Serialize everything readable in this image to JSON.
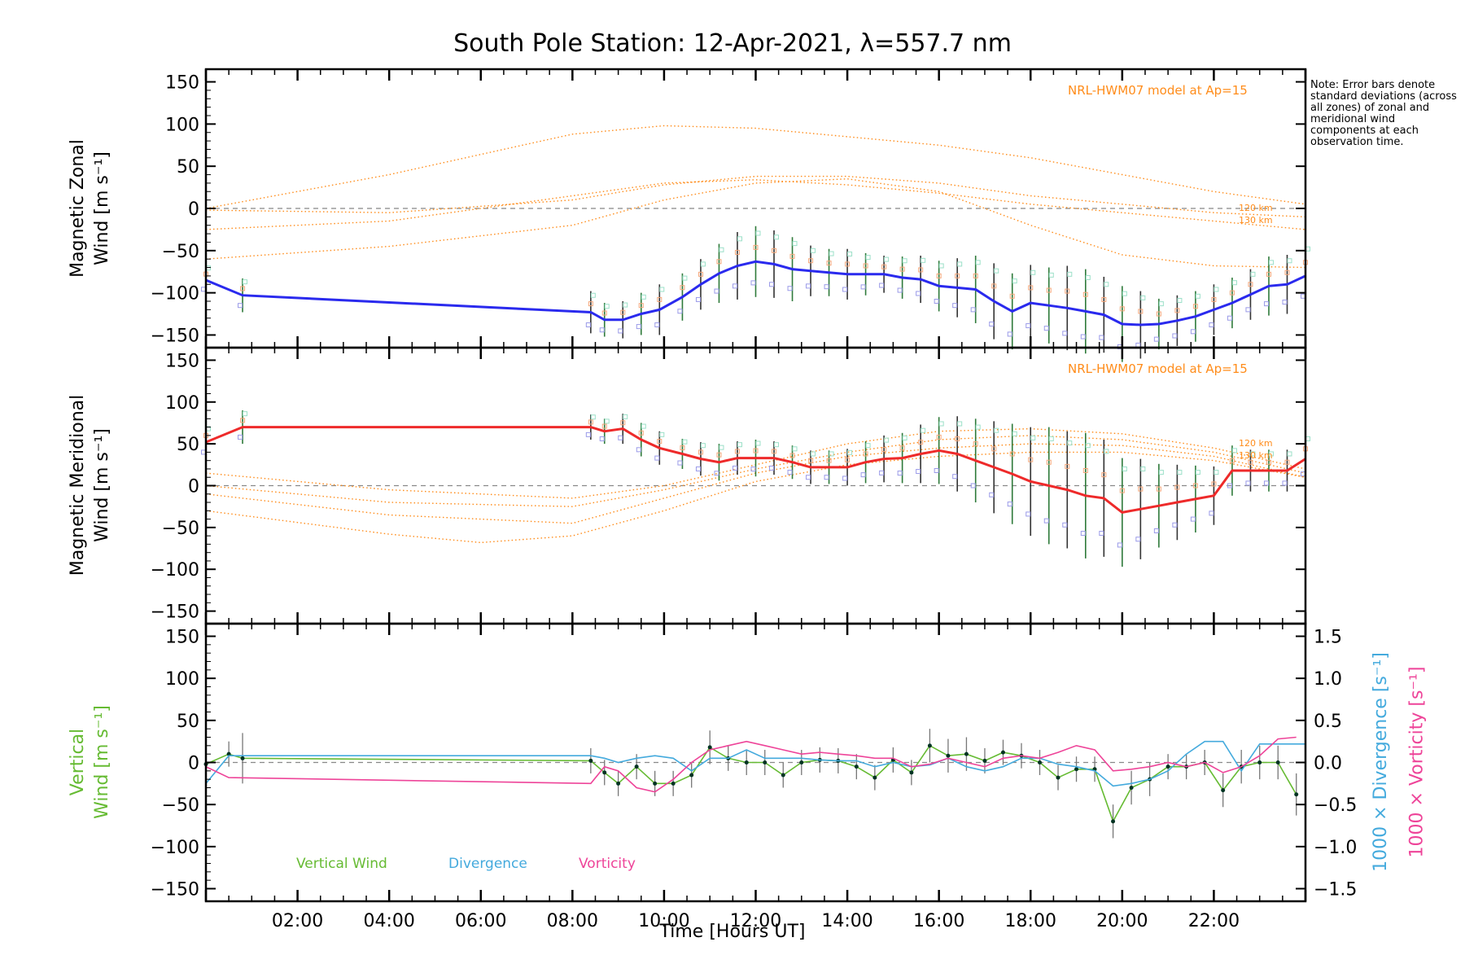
{
  "title": "South Pole Station: 12-Apr-2021, λ=557.7 nm",
  "note": "Note: Error bars denote standard deviations (across all zones) of zonal and meridional wind components at each observation time.",
  "x_axis_label": "Time [Hours UT]",
  "colors": {
    "zonal": "#2a2aee",
    "meridional": "#ee2a2a",
    "vertical": "#66bb33",
    "divergence": "#44aadd",
    "vorticity": "#ee4499",
    "model": "#ff8c1a",
    "zero_line": "#888888"
  },
  "chart_data": [
    {
      "type": "line",
      "name": "zonal",
      "title": "",
      "ylabel_line1": "Magnetic Zonal",
      "ylabel_line2": "Wind [m s⁻¹]",
      "model_note": "NRL-HWM07 model at Ap=15",
      "model_alt_labels": [
        "120 km",
        "130 km"
      ],
      "xlim": [
        0,
        24
      ],
      "ylim": [
        -165,
        165
      ],
      "yticks": [
        150,
        100,
        50,
        0,
        -50,
        -100,
        -150
      ],
      "x": [
        0.0,
        0.8,
        8.4,
        8.7,
        9.1,
        9.5,
        9.9,
        10.4,
        10.8,
        11.2,
        11.6,
        12.0,
        12.4,
        12.8,
        13.2,
        13.6,
        14.0,
        14.4,
        14.8,
        15.2,
        15.6,
        16.0,
        16.4,
        16.8,
        17.2,
        17.6,
        18.0,
        18.4,
        18.8,
        19.2,
        19.6,
        20.0,
        20.4,
        20.8,
        21.2,
        21.6,
        22.0,
        22.4,
        22.8,
        23.2,
        23.6,
        24.0
      ],
      "values": [
        -85,
        -103,
        -123,
        -132,
        -132,
        -125,
        -120,
        -105,
        -90,
        -77,
        -68,
        -63,
        -66,
        -72,
        -74,
        -76,
        -78,
        -78,
        -78,
        -82,
        -84,
        -92,
        -94,
        -96,
        -110,
        -122,
        -112,
        -115,
        -118,
        -122,
        -126,
        -137,
        -138,
        -137,
        -133,
        -128,
        -120,
        -112,
        -102,
        -92,
        -90,
        -80
      ],
      "error_bars": [
        18,
        20,
        25,
        20,
        22,
        25,
        30,
        28,
        30,
        35,
        40,
        42,
        40,
        38,
        30,
        28,
        30,
        25,
        22,
        25,
        28,
        30,
        35,
        40,
        45,
        45,
        45,
        45,
        50,
        50,
        45,
        45,
        40,
        30,
        30,
        30,
        30,
        30,
        30,
        35,
        35,
        40
      ],
      "model_curves": [
        {
          "x": [
            0,
            4,
            8,
            10,
            12,
            14,
            16,
            18,
            20,
            22,
            24
          ],
          "values": [
            0,
            40,
            88,
            98,
            95,
            85,
            75,
            60,
            40,
            20,
            5
          ]
        },
        {
          "x": [
            0,
            4,
            8,
            10,
            12,
            14,
            16,
            18,
            20,
            22,
            24
          ],
          "values": [
            -2,
            -5,
            10,
            28,
            38,
            38,
            30,
            15,
            5,
            -5,
            -10
          ]
        },
        {
          "x": [
            0,
            4,
            8,
            10,
            12,
            14,
            16,
            18,
            20,
            22,
            24
          ],
          "values": [
            -25,
            -15,
            15,
            30,
            34,
            28,
            18,
            5,
            -5,
            -15,
            -25
          ]
        },
        {
          "x": [
            0,
            4,
            8,
            10,
            12,
            14,
            16,
            18,
            20,
            22,
            24
          ],
          "values": [
            -60,
            -45,
            -20,
            10,
            30,
            35,
            20,
            -20,
            -55,
            -68,
            -70
          ]
        }
      ]
    },
    {
      "type": "line",
      "name": "meridional",
      "title": "",
      "ylabel_line1": "Magnetic Meridional",
      "ylabel_line2": "Wind [m s⁻¹]",
      "model_note": "NRL-HWM07 model at Ap=15",
      "model_alt_labels": [
        "120 km",
        "130 km"
      ],
      "xlim": [
        0,
        24
      ],
      "ylim": [
        -165,
        165
      ],
      "yticks": [
        150,
        100,
        50,
        0,
        -50,
        -100,
        -150
      ],
      "x": [
        0.0,
        0.8,
        8.4,
        8.7,
        9.1,
        9.5,
        9.9,
        10.4,
        10.8,
        11.2,
        11.6,
        12.0,
        12.4,
        12.8,
        13.2,
        13.6,
        14.0,
        14.4,
        14.8,
        15.2,
        15.6,
        16.0,
        16.4,
        16.8,
        17.2,
        17.6,
        18.0,
        18.4,
        18.8,
        19.2,
        19.6,
        20.0,
        20.4,
        20.8,
        21.2,
        21.6,
        22.0,
        22.4,
        22.8,
        23.2,
        23.6,
        24.0
      ],
      "values": [
        52,
        70,
        70,
        65,
        68,
        55,
        45,
        38,
        32,
        28,
        33,
        33,
        33,
        28,
        22,
        22,
        22,
        28,
        32,
        33,
        38,
        42,
        38,
        30,
        22,
        14,
        5,
        0,
        -5,
        -12,
        -15,
        -32,
        -28,
        -24,
        -20,
        -16,
        -12,
        18,
        18,
        18,
        18,
        32
      ],
      "error_bars": [
        20,
        20,
        15,
        15,
        18,
        20,
        20,
        18,
        20,
        22,
        20,
        22,
        20,
        20,
        20,
        20,
        22,
        25,
        28,
        30,
        35,
        40,
        45,
        50,
        55,
        60,
        65,
        70,
        70,
        75,
        70,
        65,
        60,
        50,
        45,
        40,
        35,
        30,
        25,
        25,
        25,
        30
      ],
      "model_curves": [
        {
          "x": [
            0,
            4,
            8,
            10,
            12,
            14,
            16,
            18,
            20,
            22,
            24
          ],
          "values": [
            15,
            -5,
            -15,
            0,
            25,
            50,
            65,
            68,
            62,
            45,
            20
          ]
        },
        {
          "x": [
            0,
            4,
            8,
            10,
            12,
            14,
            16,
            18,
            20,
            22,
            24
          ],
          "values": [
            0,
            -20,
            -25,
            -5,
            20,
            40,
            55,
            60,
            55,
            40,
            15
          ]
        },
        {
          "x": [
            0,
            4,
            8,
            10,
            12,
            14,
            16,
            18,
            20,
            22,
            24
          ],
          "values": [
            -10,
            -35,
            -45,
            -15,
            15,
            35,
            45,
            50,
            48,
            35,
            10
          ]
        },
        {
          "x": [
            0,
            4,
            6,
            8,
            10,
            12,
            14,
            16,
            18,
            20,
            22,
            24
          ],
          "values": [
            -30,
            -58,
            -68,
            -60,
            -30,
            5,
            25,
            35,
            40,
            40,
            30,
            10
          ]
        }
      ]
    },
    {
      "type": "line",
      "name": "vertical",
      "ylabel_line1": "Vertical",
      "ylabel_line2": "Wind [m s⁻¹]",
      "right_label_divergence": "1000 × Divergence [s⁻¹]",
      "right_label_vorticity": "1000 × Vorticity [s⁻¹]",
      "xlim": [
        0,
        24
      ],
      "ylim": [
        -165,
        165
      ],
      "yticks": [
        150,
        100,
        50,
        0,
        -50,
        -100,
        -150
      ],
      "y2lim": [
        -1.65,
        1.65
      ],
      "y2ticks": [
        1.5,
        1.0,
        0.5,
        0.0,
        -0.5,
        -1.0,
        -1.5
      ],
      "y2ticklabels": [
        "1.5",
        "1.0",
        "0.5",
        "0.0",
        "−0.5",
        "−1.0",
        "−1.5"
      ],
      "xticks": [
        2,
        4,
        6,
        8,
        10,
        12,
        14,
        16,
        18,
        20,
        22
      ],
      "xticklabels": [
        "02:00",
        "04:00",
        "06:00",
        "08:00",
        "10:00",
        "12:00",
        "14:00",
        "16:00",
        "18:00",
        "20:00",
        "22:00"
      ],
      "legend": [
        "Vertical Wind",
        "Divergence",
        "Vorticity"
      ],
      "series": [
        {
          "name": "Vertical Wind",
          "x": [
            0.0,
            0.5,
            0.8,
            8.4,
            8.7,
            9.0,
            9.4,
            9.8,
            10.2,
            10.6,
            11.0,
            11.4,
            11.8,
            12.2,
            12.6,
            13.0,
            13.4,
            13.8,
            14.2,
            14.6,
            15.0,
            15.4,
            15.8,
            16.2,
            16.6,
            17.0,
            17.4,
            17.8,
            18.2,
            18.6,
            19.0,
            19.4,
            19.8,
            20.2,
            20.6,
            21.0,
            21.4,
            21.8,
            22.2,
            22.6,
            23.0,
            23.4,
            23.8
          ],
          "values": [
            -2,
            10,
            5,
            2,
            -12,
            -25,
            -5,
            -25,
            -25,
            -15,
            18,
            5,
            0,
            0,
            -15,
            0,
            3,
            2,
            -5,
            -18,
            3,
            -12,
            20,
            8,
            10,
            2,
            12,
            8,
            0,
            -18,
            -8,
            -8,
            -70,
            -30,
            -20,
            -5,
            -5,
            0,
            -33,
            -5,
            0,
            0,
            -38
          ],
          "error_bars": [
            15,
            15,
            30,
            15,
            15,
            15,
            15,
            15,
            15,
            15,
            20,
            15,
            15,
            15,
            15,
            15,
            15,
            15,
            15,
            15,
            15,
            15,
            20,
            20,
            20,
            15,
            15,
            15,
            15,
            15,
            15,
            15,
            20,
            20,
            20,
            15,
            15,
            15,
            20,
            20,
            20,
            20,
            25
          ]
        },
        {
          "name": "Divergence",
          "x": [
            0.0,
            0.5,
            8.4,
            8.7,
            9.0,
            9.4,
            9.8,
            10.2,
            10.6,
            11.0,
            11.4,
            11.8,
            12.2,
            12.6,
            13.0,
            13.4,
            13.8,
            14.2,
            14.6,
            15.0,
            15.4,
            15.8,
            16.2,
            16.6,
            17.0,
            17.4,
            17.8,
            18.2,
            18.6,
            19.0,
            19.4,
            19.8,
            20.2,
            20.6,
            21.0,
            21.4,
            21.8,
            22.2,
            22.6,
            23.0,
            23.4,
            23.8,
            24.0
          ],
          "values": [
            -0.25,
            0.08,
            0.08,
            0.05,
            0.0,
            0.05,
            0.08,
            0.05,
            -0.1,
            0.05,
            0.05,
            0.15,
            0.05,
            0.05,
            0.05,
            0.03,
            0.02,
            0.02,
            -0.05,
            0.0,
            -0.05,
            -0.03,
            0.05,
            -0.05,
            -0.1,
            -0.05,
            0.05,
            0.05,
            -0.02,
            -0.05,
            -0.1,
            -0.28,
            -0.25,
            -0.2,
            -0.1,
            0.1,
            0.25,
            0.25,
            -0.1,
            0.22,
            0.22,
            0.22,
            0.22
          ]
        },
        {
          "name": "Vorticity",
          "x": [
            0.0,
            0.5,
            8.4,
            8.7,
            9.0,
            9.4,
            9.8,
            10.2,
            10.6,
            11.0,
            11.4,
            11.8,
            12.2,
            12.6,
            13.0,
            13.4,
            13.8,
            14.2,
            14.6,
            15.0,
            15.4,
            15.8,
            16.2,
            16.6,
            17.0,
            17.4,
            17.8,
            18.2,
            18.6,
            19.0,
            19.4,
            19.8,
            20.2,
            20.6,
            21.0,
            21.4,
            21.8,
            22.2,
            22.6,
            23.0,
            23.4,
            23.8
          ],
          "values": [
            -0.05,
            -0.18,
            -0.25,
            -0.05,
            -0.1,
            -0.3,
            -0.35,
            -0.2,
            0.0,
            0.15,
            0.2,
            0.25,
            0.2,
            0.15,
            0.1,
            0.12,
            0.1,
            0.08,
            0.05,
            0.05,
            -0.05,
            -0.02,
            0.05,
            0.0,
            -0.05,
            0.05,
            0.08,
            0.05,
            0.12,
            0.2,
            0.15,
            -0.1,
            -0.08,
            -0.05,
            0.0,
            -0.05,
            0.0,
            -0.12,
            -0.05,
            0.08,
            0.28,
            0.3
          ]
        }
      ]
    }
  ]
}
